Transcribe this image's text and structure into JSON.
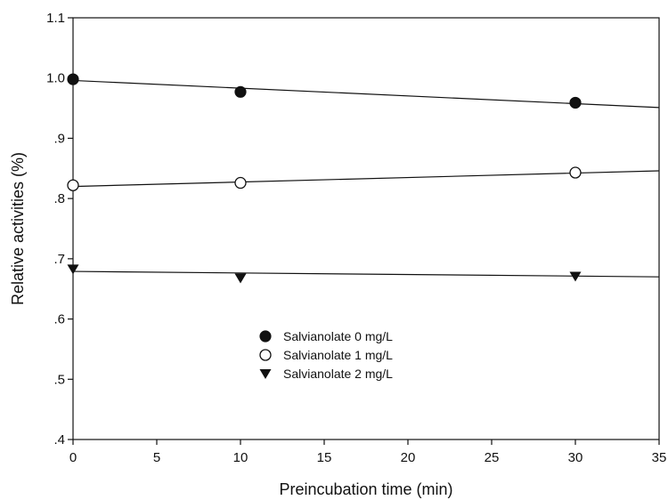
{
  "chart_data": {
    "type": "scatter",
    "title": "",
    "xlabel": "Preincubation time (min)",
    "ylabel": "Relative activities (%)",
    "xlim": [
      0,
      35
    ],
    "ylim": [
      0.4,
      1.1
    ],
    "x_ticks": [
      0,
      5,
      10,
      15,
      20,
      25,
      30,
      35
    ],
    "x_tick_labels": [
      "0",
      "5",
      "10",
      "15",
      "20",
      "25",
      "30",
      "35"
    ],
    "y_ticks": [
      0.4,
      0.5,
      0.6,
      0.7,
      0.8,
      0.9,
      1.0,
      1.1
    ],
    "y_tick_labels": [
      ".4",
      ".5",
      ".6",
      ".7",
      ".8",
      ".9",
      "1.0",
      "1.1"
    ],
    "grid": false,
    "legend_position": "center-left",
    "series": [
      {
        "name": "Salvianolate 0 mg/L",
        "marker": "filled-circle",
        "color": "#111111",
        "x": [
          0,
          10,
          30
        ],
        "y": [
          0.998,
          0.977,
          0.959
        ],
        "fit_line": [
          [
            0,
            0.996
          ],
          [
            35,
            0.951
          ]
        ]
      },
      {
        "name": "Salvianolate 1 mg/L",
        "marker": "open-circle",
        "color": "#111111",
        "x": [
          0,
          10,
          30
        ],
        "y": [
          0.822,
          0.826,
          0.843
        ],
        "fit_line": [
          [
            0,
            0.82
          ],
          [
            35,
            0.846
          ]
        ]
      },
      {
        "name": "Salvianolate 2 mg/L",
        "marker": "filled-triangle-down",
        "color": "#111111",
        "x": [
          0,
          10,
          30
        ],
        "y": [
          0.683,
          0.668,
          0.671
        ],
        "fit_line": [
          [
            0,
            0.679
          ],
          [
            35,
            0.67
          ]
        ]
      }
    ]
  }
}
